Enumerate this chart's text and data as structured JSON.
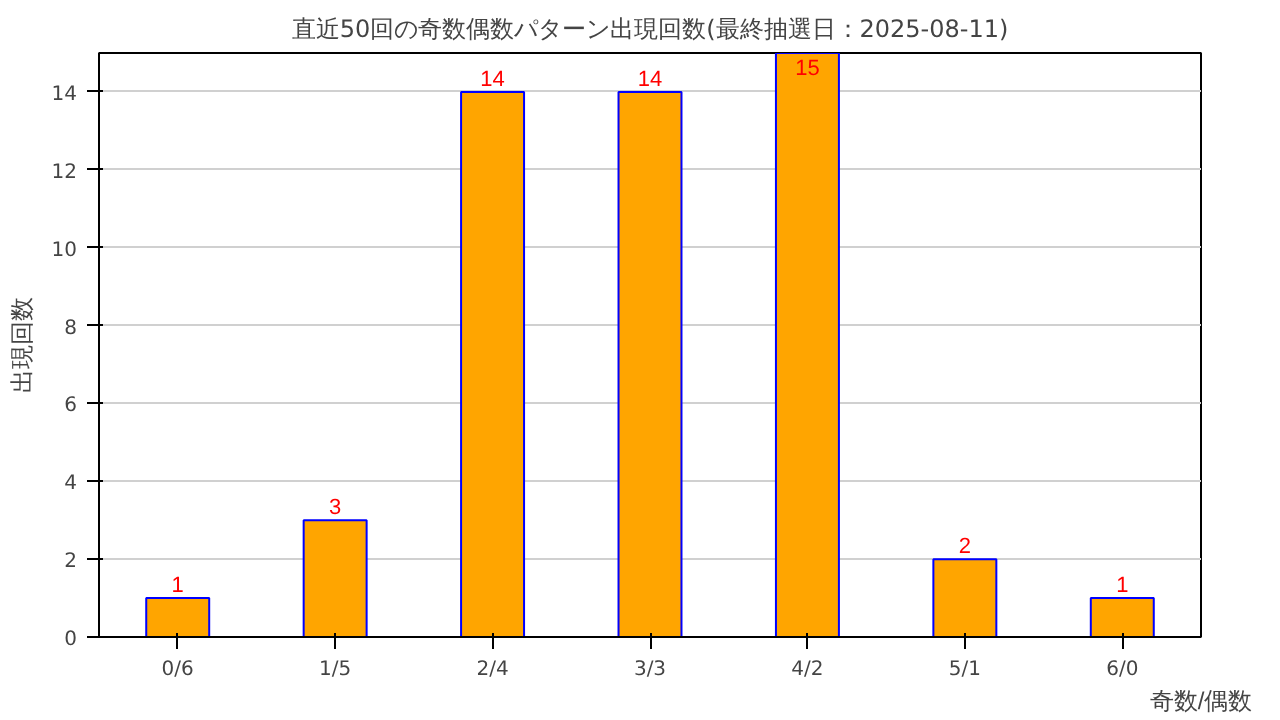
{
  "chart_data": {
    "type": "bar",
    "title": "直近50回の奇数偶数パターン出現回数(最終抽選日：2025-08-11)",
    "xlabel": "奇数/偶数",
    "ylabel": "出現回数",
    "categories": [
      "0/6",
      "1/5",
      "2/4",
      "3/3",
      "4/2",
      "5/1",
      "6/0"
    ],
    "values": [
      1,
      3,
      14,
      14,
      15,
      2,
      1
    ],
    "color": "#ffa500",
    "ylim": [
      0,
      15
    ],
    "yticks": [
      0,
      2,
      4,
      6,
      8,
      10,
      12,
      14
    ],
    "grid": "y",
    "data_labels": true
  }
}
